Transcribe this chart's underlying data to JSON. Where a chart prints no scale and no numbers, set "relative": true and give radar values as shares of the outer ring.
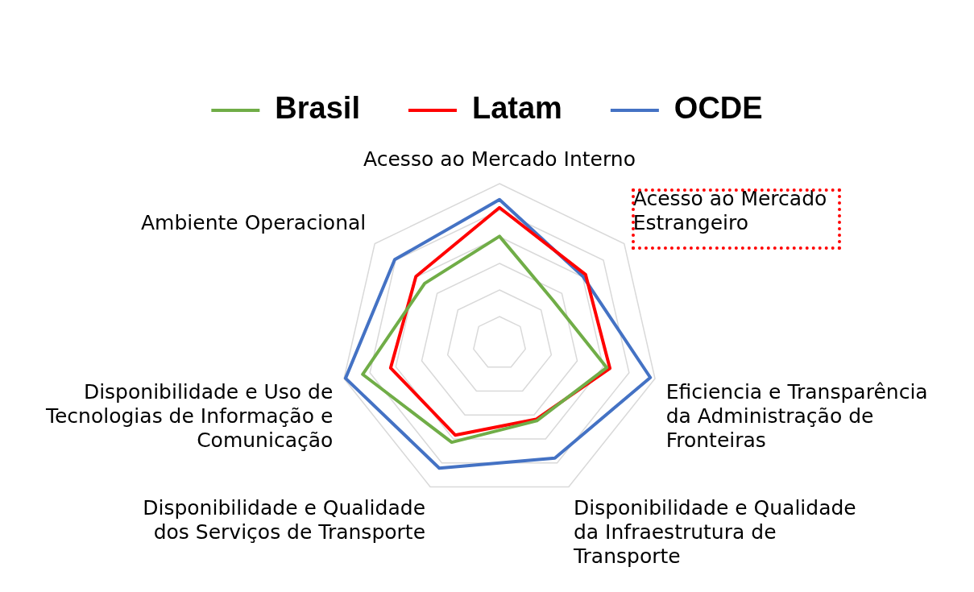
{
  "chart_data": {
    "type": "radar",
    "relative": true,
    "legend": "top",
    "grid": true,
    "marker": "none",
    "line_style": "solid",
    "categories": [
      "Acesso ao Mercado Interno",
      "Acesso ao Mercado Estrangeiro",
      "Eficiencia e Transparência da Administração de Fronteiras",
      "Disponibilidade e Qualidade da Infraestrutura de Transporte",
      "Disponibilidade e Qualidade dos Serviços de Transporte",
      "Disponibilidade e Uso de Tecnologias de Informação e Comunicação",
      "Ambiente Operacional"
    ],
    "series": [
      {
        "name": "Brasil",
        "color": "#70ad47",
        "values": [
          0.67,
          0.43,
          0.69,
          0.54,
          0.69,
          0.88,
          0.6
        ]
      },
      {
        "name": "Latam",
        "color": "#ff0000",
        "values": [
          0.85,
          0.69,
          0.71,
          0.53,
          0.64,
          0.7,
          0.67
        ]
      },
      {
        "name": "OCDE",
        "color": "#4472c4",
        "values": [
          0.9,
          0.67,
          0.97,
          0.8,
          0.87,
          0.99,
          0.84
        ]
      }
    ]
  }
}
